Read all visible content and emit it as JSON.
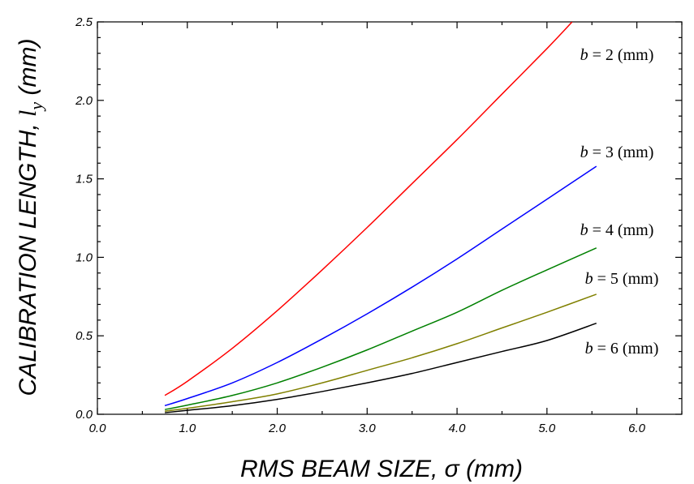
{
  "chart_data": {
    "type": "line",
    "xlabel": "RMS BEAM SIZE, σ (mm)",
    "ylabel_parts": {
      "prefix": "CALIBRATION LENGTH, ",
      "symbol": "l",
      "subscript": "y",
      "suffix": " (mm)"
    },
    "xlim": [
      0.0,
      6.5
    ],
    "ylim": [
      0.0,
      2.5
    ],
    "x_ticks": [
      "0.0",
      "1.0",
      "2.0",
      "3.0",
      "4.0",
      "5.0",
      "6.0"
    ],
    "y_ticks": [
      "0.0",
      "0.5",
      "1.0",
      "1.5",
      "2.0",
      "2.5"
    ],
    "grid": false,
    "series": [
      {
        "name": "b = 2 (mm)",
        "b_value": 2,
        "color": "#ff0000",
        "x": [
          0.75,
          1.0,
          1.5,
          2.0,
          2.5,
          3.0,
          3.5,
          4.0,
          4.5,
          5.0,
          5.28
        ],
        "y": [
          0.12,
          0.21,
          0.42,
          0.66,
          0.92,
          1.19,
          1.47,
          1.75,
          2.04,
          2.33,
          2.5
        ]
      },
      {
        "name": "b = 3 (mm)",
        "b_value": 3,
        "color": "#0000ff",
        "x": [
          0.75,
          1.0,
          1.5,
          2.0,
          2.5,
          3.0,
          3.5,
          4.0,
          4.5,
          5.0,
          5.55
        ],
        "y": [
          0.055,
          0.1,
          0.2,
          0.33,
          0.48,
          0.64,
          0.81,
          0.99,
          1.18,
          1.37,
          1.58
        ]
      },
      {
        "name": "b = 4 (mm)",
        "b_value": 4,
        "color": "#008000",
        "x": [
          0.75,
          1.0,
          1.5,
          2.0,
          2.5,
          3.0,
          3.5,
          4.0,
          4.5,
          5.0,
          5.55
        ],
        "y": [
          0.03,
          0.058,
          0.12,
          0.2,
          0.3,
          0.41,
          0.53,
          0.65,
          0.79,
          0.92,
          1.06
        ]
      },
      {
        "name": "b = 5 (mm)",
        "b_value": 5,
        "color": "#808000",
        "x": [
          0.75,
          1.0,
          1.5,
          2.0,
          2.5,
          3.0,
          3.5,
          4.0,
          4.5,
          5.0,
          5.55
        ],
        "y": [
          0.02,
          0.038,
          0.08,
          0.13,
          0.2,
          0.28,
          0.36,
          0.45,
          0.55,
          0.65,
          0.765
        ]
      },
      {
        "name": "b = 6 (mm)",
        "b_value": 6,
        "color": "#000000",
        "x": [
          0.75,
          1.0,
          1.5,
          2.0,
          2.5,
          3.0,
          3.5,
          4.0,
          4.5,
          5.0,
          5.55
        ],
        "y": [
          0.01,
          0.025,
          0.055,
          0.095,
          0.145,
          0.2,
          0.26,
          0.33,
          0.4,
          0.47,
          0.58
        ]
      }
    ]
  }
}
